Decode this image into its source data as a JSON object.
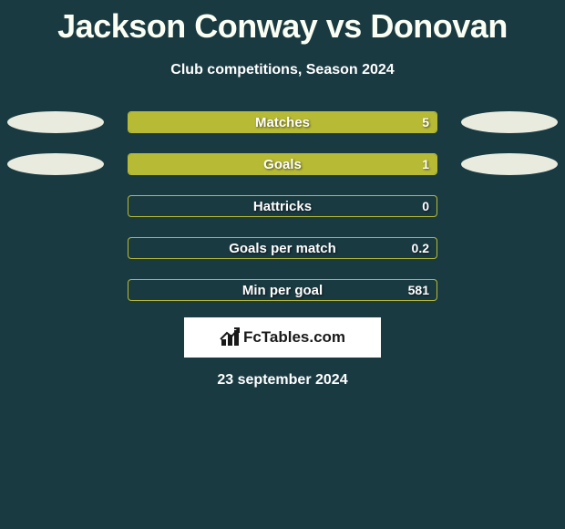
{
  "title": "Jackson Conway vs Donovan",
  "subtitle": "Club competitions, Season 2024",
  "date": "23 september 2024",
  "logo_text": "FcTables.com",
  "theme": {
    "background": "#1a3a42",
    "bar_fill": "#b7ba34",
    "bar_border": "#b7ba34",
    "ellipse": "#e8ebde",
    "title_color": "#fbfff3",
    "text_color": "#ffffff"
  },
  "stats": [
    {
      "label": "Matches",
      "value": "5",
      "fill_pct": 100,
      "left_ellipse": true,
      "right_ellipse": true
    },
    {
      "label": "Goals",
      "value": "1",
      "fill_pct": 100,
      "left_ellipse": true,
      "right_ellipse": true
    },
    {
      "label": "Hattricks",
      "value": "0",
      "fill_pct": 0,
      "left_ellipse": false,
      "right_ellipse": false
    },
    {
      "label": "Goals per match",
      "value": "0.2",
      "fill_pct": 0,
      "left_ellipse": false,
      "right_ellipse": false
    },
    {
      "label": "Min per goal",
      "value": "581",
      "fill_pct": 0,
      "left_ellipse": false,
      "right_ellipse": false
    }
  ]
}
